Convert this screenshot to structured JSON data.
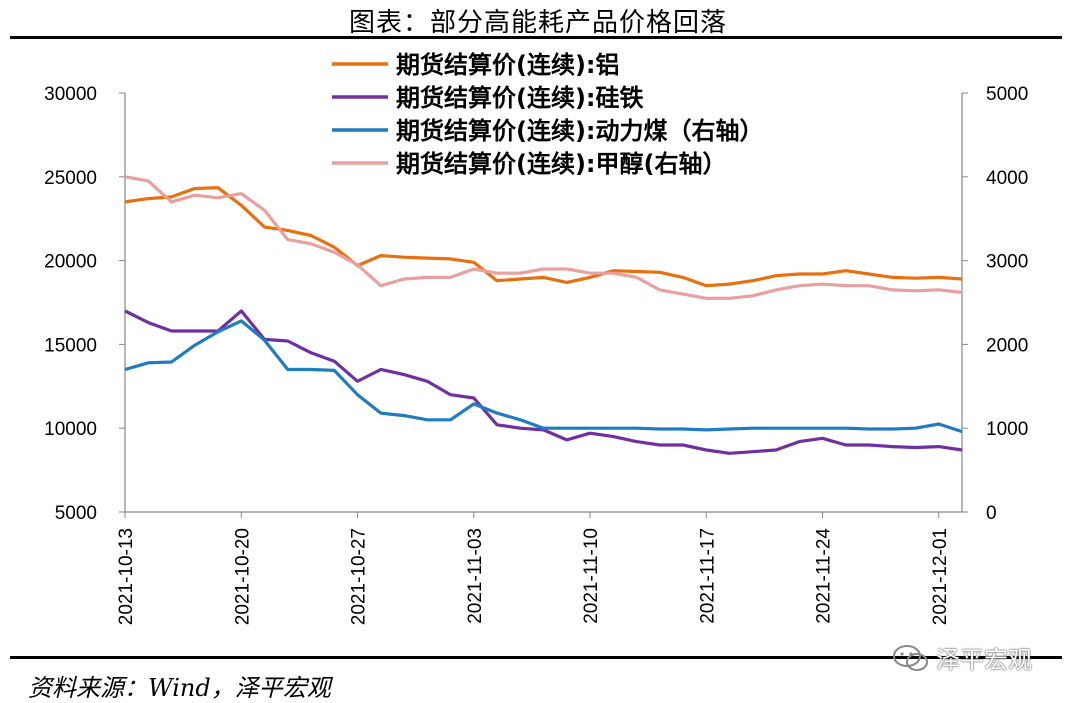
{
  "header": {
    "title": "图表：部分高能耗产品价格回落"
  },
  "footer": {
    "source": "资料来源：Wind，泽平宏观",
    "watermark": "泽平宏观"
  },
  "chart_data": {
    "type": "line",
    "title": "图表：部分高能耗产品价格回落",
    "x": [
      "2021-10-13",
      "2021-10-14",
      "2021-10-15",
      "2021-10-18",
      "2021-10-19",
      "2021-10-20",
      "2021-10-21",
      "2021-10-22",
      "2021-10-25",
      "2021-10-26",
      "2021-10-27",
      "2021-10-28",
      "2021-10-29",
      "2021-11-01",
      "2021-11-02",
      "2021-11-03",
      "2021-11-04",
      "2021-11-05",
      "2021-11-08",
      "2021-11-09",
      "2021-11-10",
      "2021-11-11",
      "2021-11-12",
      "2021-11-15",
      "2021-11-16",
      "2021-11-17",
      "2021-11-18",
      "2021-11-19",
      "2021-11-22",
      "2021-11-23",
      "2021-11-24",
      "2021-11-25",
      "2021-11-26",
      "2021-11-29",
      "2021-11-30",
      "2021-12-01",
      "2021-12-02"
    ],
    "x_ticks": [
      "2021-10-13",
      "2021-10-20",
      "2021-10-27",
      "2021-11-03",
      "2021-11-10",
      "2021-11-17",
      "2021-11-24",
      "2021-12-01"
    ],
    "y_left": {
      "ticks": [
        "5000",
        "10000",
        "15000",
        "20000",
        "25000",
        "30000"
      ],
      "ylim": [
        5000,
        30000
      ]
    },
    "y_right": {
      "ticks": [
        "0",
        "1000",
        "2000",
        "3000",
        "4000",
        "5000"
      ],
      "ylim": [
        0,
        5000
      ]
    },
    "legend_position": "top-center",
    "series": [
      {
        "name": "期货结算价(连续):铝",
        "axis": "left",
        "color": "#E8700E",
        "values": [
          23500,
          23700,
          23800,
          24300,
          24350,
          23300,
          22000,
          21800,
          21500,
          20800,
          19700,
          20300,
          20200,
          20150,
          20100,
          19900,
          18800,
          18900,
          19000,
          18700,
          19000,
          19400,
          19350,
          19300,
          19000,
          18500,
          18600,
          18800,
          19100,
          19200,
          19200,
          19400,
          19200,
          19000,
          18950,
          19000,
          18900
        ]
      },
      {
        "name": "期货结算价(连续):硅铁",
        "axis": "left",
        "color": "#7030A0",
        "values": [
          17000,
          16300,
          15800,
          15800,
          15800,
          17000,
          15300,
          15200,
          14500,
          14000,
          12800,
          13500,
          13200,
          12800,
          12000,
          11800,
          10200,
          10000,
          9900,
          9300,
          9700,
          9500,
          9200,
          9000,
          9000,
          8700,
          8500,
          8600,
          8700,
          9200,
          9400,
          9000,
          9000,
          8900,
          8850,
          8900,
          8700
        ]
      },
      {
        "name": "期货结算价(连续):动力煤（右轴）",
        "axis": "right",
        "color": "#1F7CC0",
        "values": [
          1700,
          1780,
          1790,
          1990,
          2150,
          2280,
          2050,
          1700,
          1700,
          1690,
          1400,
          1180,
          1150,
          1100,
          1100,
          1290,
          1180,
          1100,
          1000,
          1000,
          1000,
          1000,
          1000,
          990,
          990,
          980,
          990,
          1000,
          1000,
          1000,
          1000,
          1000,
          990,
          990,
          1000,
          1050,
          960
        ]
      },
      {
        "name": "期货结算价(连续):甲醇(右轴）",
        "axis": "right",
        "color": "#E8A0A0",
        "values": [
          4000,
          3950,
          3700,
          3780,
          3750,
          3800,
          3600,
          3250,
          3200,
          3100,
          2950,
          2700,
          2780,
          2800,
          2800,
          2900,
          2850,
          2850,
          2900,
          2900,
          2850,
          2850,
          2800,
          2650,
          2600,
          2550,
          2550,
          2580,
          2650,
          2700,
          2720,
          2700,
          2700,
          2650,
          2640,
          2650,
          2620
        ]
      }
    ]
  }
}
